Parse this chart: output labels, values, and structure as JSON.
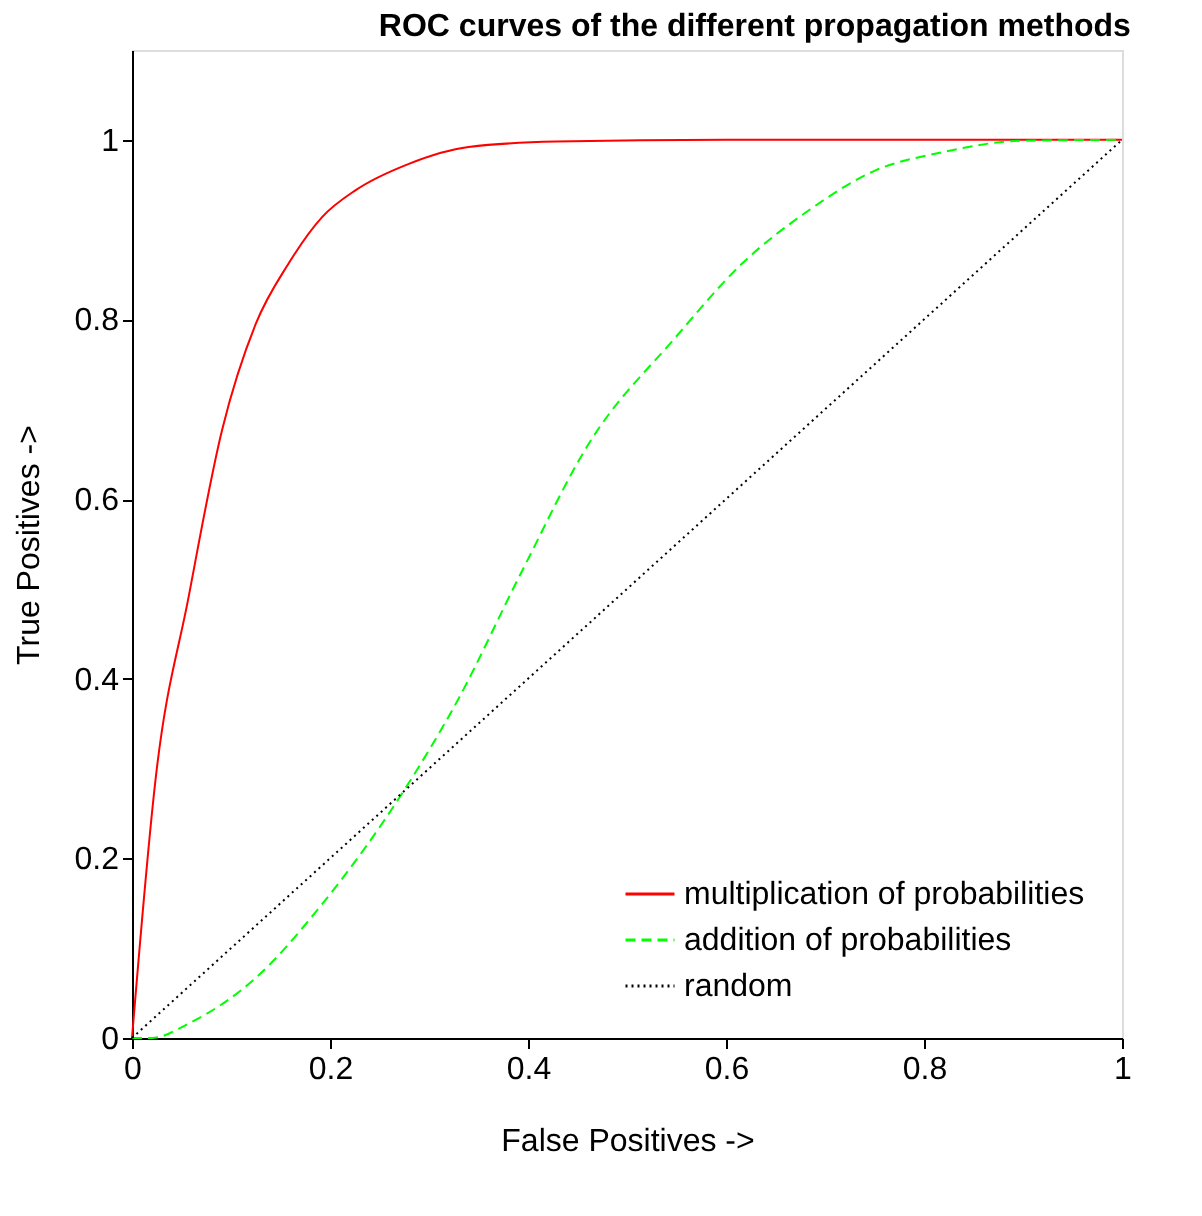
{
  "chart_data": {
    "type": "line",
    "title": "ROC curves of the different propagation methods",
    "xlabel": "False Positives ->",
    "ylabel": "True Positives ->",
    "xlim": [
      0,
      1
    ],
    "ylim": [
      0,
      1.1
    ],
    "xticks": [
      0,
      0.2,
      0.4,
      0.6,
      0.8,
      1
    ],
    "yticks": [
      0,
      0.2,
      0.4,
      0.6,
      0.8,
      1
    ],
    "grid": false,
    "legend": "bottom right",
    "marker": "none",
    "series": [
      {
        "name": "multiplication of probabilities",
        "color": "#ff0000",
        "line_style": "solid",
        "x": [
          0,
          0.024,
          0.057,
          0.091,
          0.125,
          0.158,
          0.192,
          0.226,
          0.279,
          0.34,
          0.428,
          0.6,
          1
        ],
        "values": [
          0,
          0.29,
          0.49,
          0.677,
          0.795,
          0.862,
          0.914,
          0.944,
          0.973,
          0.992,
          0.998,
          1,
          1
        ]
      },
      {
        "name": "addition of probabilities",
        "color": "#00ff00",
        "line_style": "dashed",
        "x": [
          0,
          0.02,
          0.057,
          0.125,
          0.192,
          0.279,
          0.327,
          0.394,
          0.461,
          0.549,
          0.616,
          0.683,
          0.751,
          0.818,
          0.899,
          1
        ],
        "values": [
          0,
          0,
          0.016,
          0.067,
          0.149,
          0.283,
          0.372,
          0.52,
          0.661,
          0.78,
          0.862,
          0.921,
          0.966,
          0.986,
          0.999,
          1
        ]
      },
      {
        "name": "random",
        "color": "#000000",
        "line_style": "dotted",
        "x": [
          0,
          1
        ],
        "values": [
          0,
          1
        ]
      }
    ]
  }
}
